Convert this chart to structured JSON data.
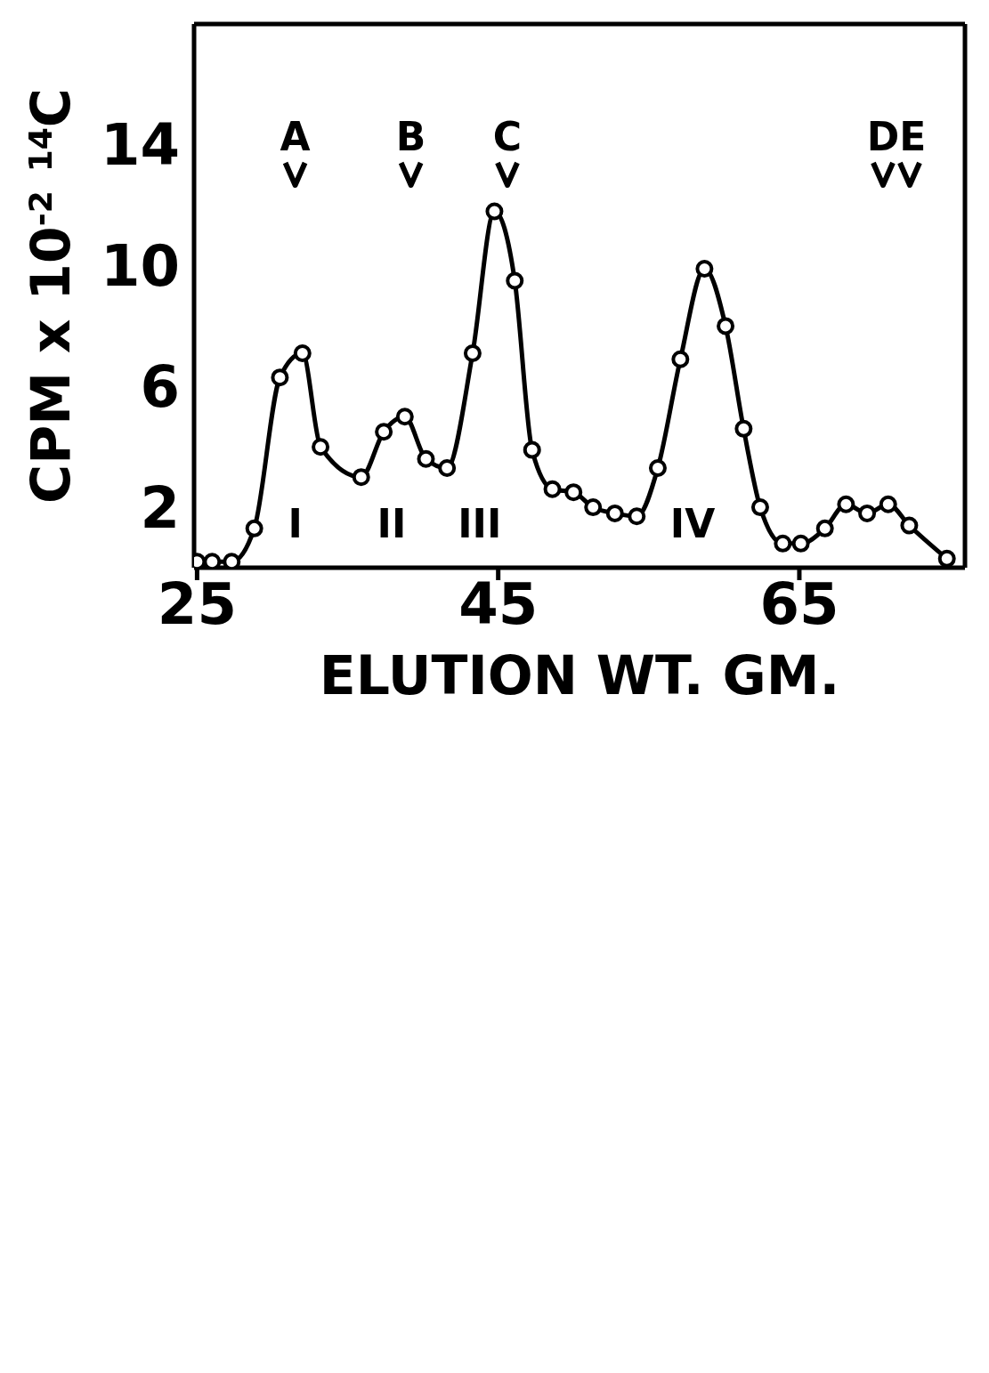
{
  "chart_data": {
    "type": "line",
    "xlabel": "ELUTION WT. GM.",
    "ylabel": "CPM x 10$^{-2}$ $^{14}$C",
    "x": [
      25,
      26,
      27.3,
      28.8,
      30.5,
      32,
      33.2,
      35.9,
      37.4,
      38.8,
      40.2,
      41.6,
      43.3,
      44.75,
      46.1,
      47.25,
      48.6,
      50,
      51.3,
      52.75,
      54.2,
      55.6,
      57.1,
      58.7,
      60.1,
      61.3,
      62.4,
      63.9,
      65.1,
      66.7,
      68.1,
      69.5,
      70.9,
      72.3,
      74.8
    ],
    "series": [
      {
        "color": "#000000",
        "values": [
          0.2,
          0.2,
          0.2,
          1.3,
          6.3,
          7.1,
          4,
          3,
          4.5,
          5,
          3.6,
          3.3,
          7.1,
          11.8,
          9.5,
          3.9,
          2.6,
          2.5,
          2,
          1.8,
          1.7,
          3.3,
          6.9,
          9.9,
          8,
          4.6,
          2,
          0.8,
          0.8,
          1.3,
          2.1,
          1.8,
          2.1,
          1.4,
          0.3
        ]
      }
    ],
    "xlim": [
      24.8,
      76
    ],
    "xticks": [
      25,
      45,
      65
    ],
    "ylim": [
      0,
      18
    ],
    "yticks": [
      2,
      6,
      10,
      14
    ],
    "marker": "circle",
    "line_style": "solid",
    "grid": false,
    "legend": false,
    "annotations": [
      "A",
      "B",
      "C",
      "DE",
      "I",
      "II",
      "III",
      "IV"
    ]
  }
}
